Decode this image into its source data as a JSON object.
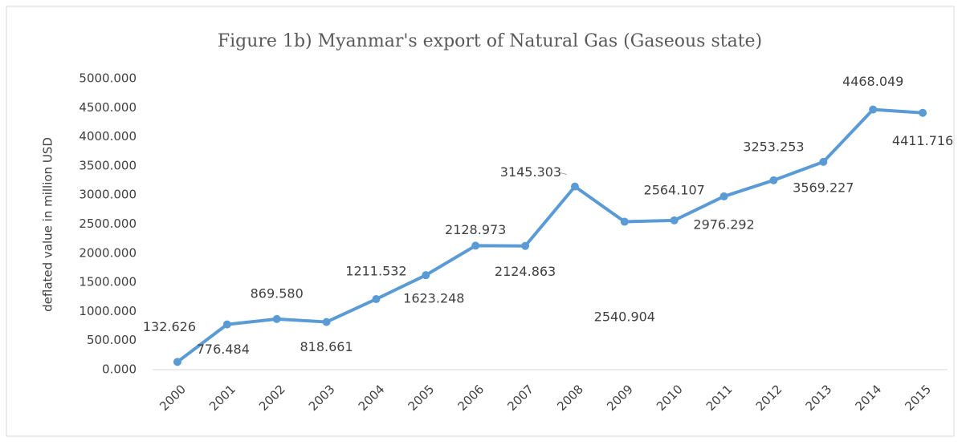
{
  "chart_data": {
    "type": "line",
    "title": "Figure 1b) Myanmar's export of Natural Gas (Gaseous state)",
    "y_label": "deflated value in million USD",
    "categories": [
      "2000",
      "2001",
      "2002",
      "2003",
      "2004",
      "2005",
      "2006",
      "2007",
      "2008",
      "2009",
      "2010",
      "2011",
      "2012",
      "2013",
      "2014",
      "2015"
    ],
    "series": [
      {
        "name": "Natural Gas",
        "color": "#5b9bd5",
        "values": [
          132.626,
          776.484,
          869.58,
          818.661,
          1211.532,
          1623.248,
          2128.973,
          2124.863,
          3145.303,
          2540.904,
          2564.107,
          2976.292,
          3253.253,
          3569.227,
          4468.049,
          4411.716
        ],
        "value_labels": [
          "132.626",
          "776.484",
          "869.580",
          "818.661",
          "1211.532",
          "1623.248",
          "2128.973",
          "2124.863",
          "3145.303",
          "2540.904",
          "2564.107",
          "2976.292",
          "3253.253",
          "3569.227",
          "4468.049",
          "4411.716"
        ]
      }
    ],
    "ylim": [
      0,
      5000
    ],
    "yticks": [
      {
        "value": 0,
        "label": "0.000"
      },
      {
        "value": 500,
        "label": "500.000"
      },
      {
        "value": 1000,
        "label": "1000.000"
      },
      {
        "value": 1500,
        "label": "1500.000"
      },
      {
        "value": 2000,
        "label": "2000.000"
      },
      {
        "value": 2500,
        "label": "2500.000"
      },
      {
        "value": 3000,
        "label": "3000.000"
      },
      {
        "value": 3500,
        "label": "3500.000"
      },
      {
        "value": 4000,
        "label": "4000.000"
      },
      {
        "value": 4500,
        "label": "4500.000"
      },
      {
        "value": 5000,
        "label": "5000.000"
      }
    ],
    "grid": false
  }
}
